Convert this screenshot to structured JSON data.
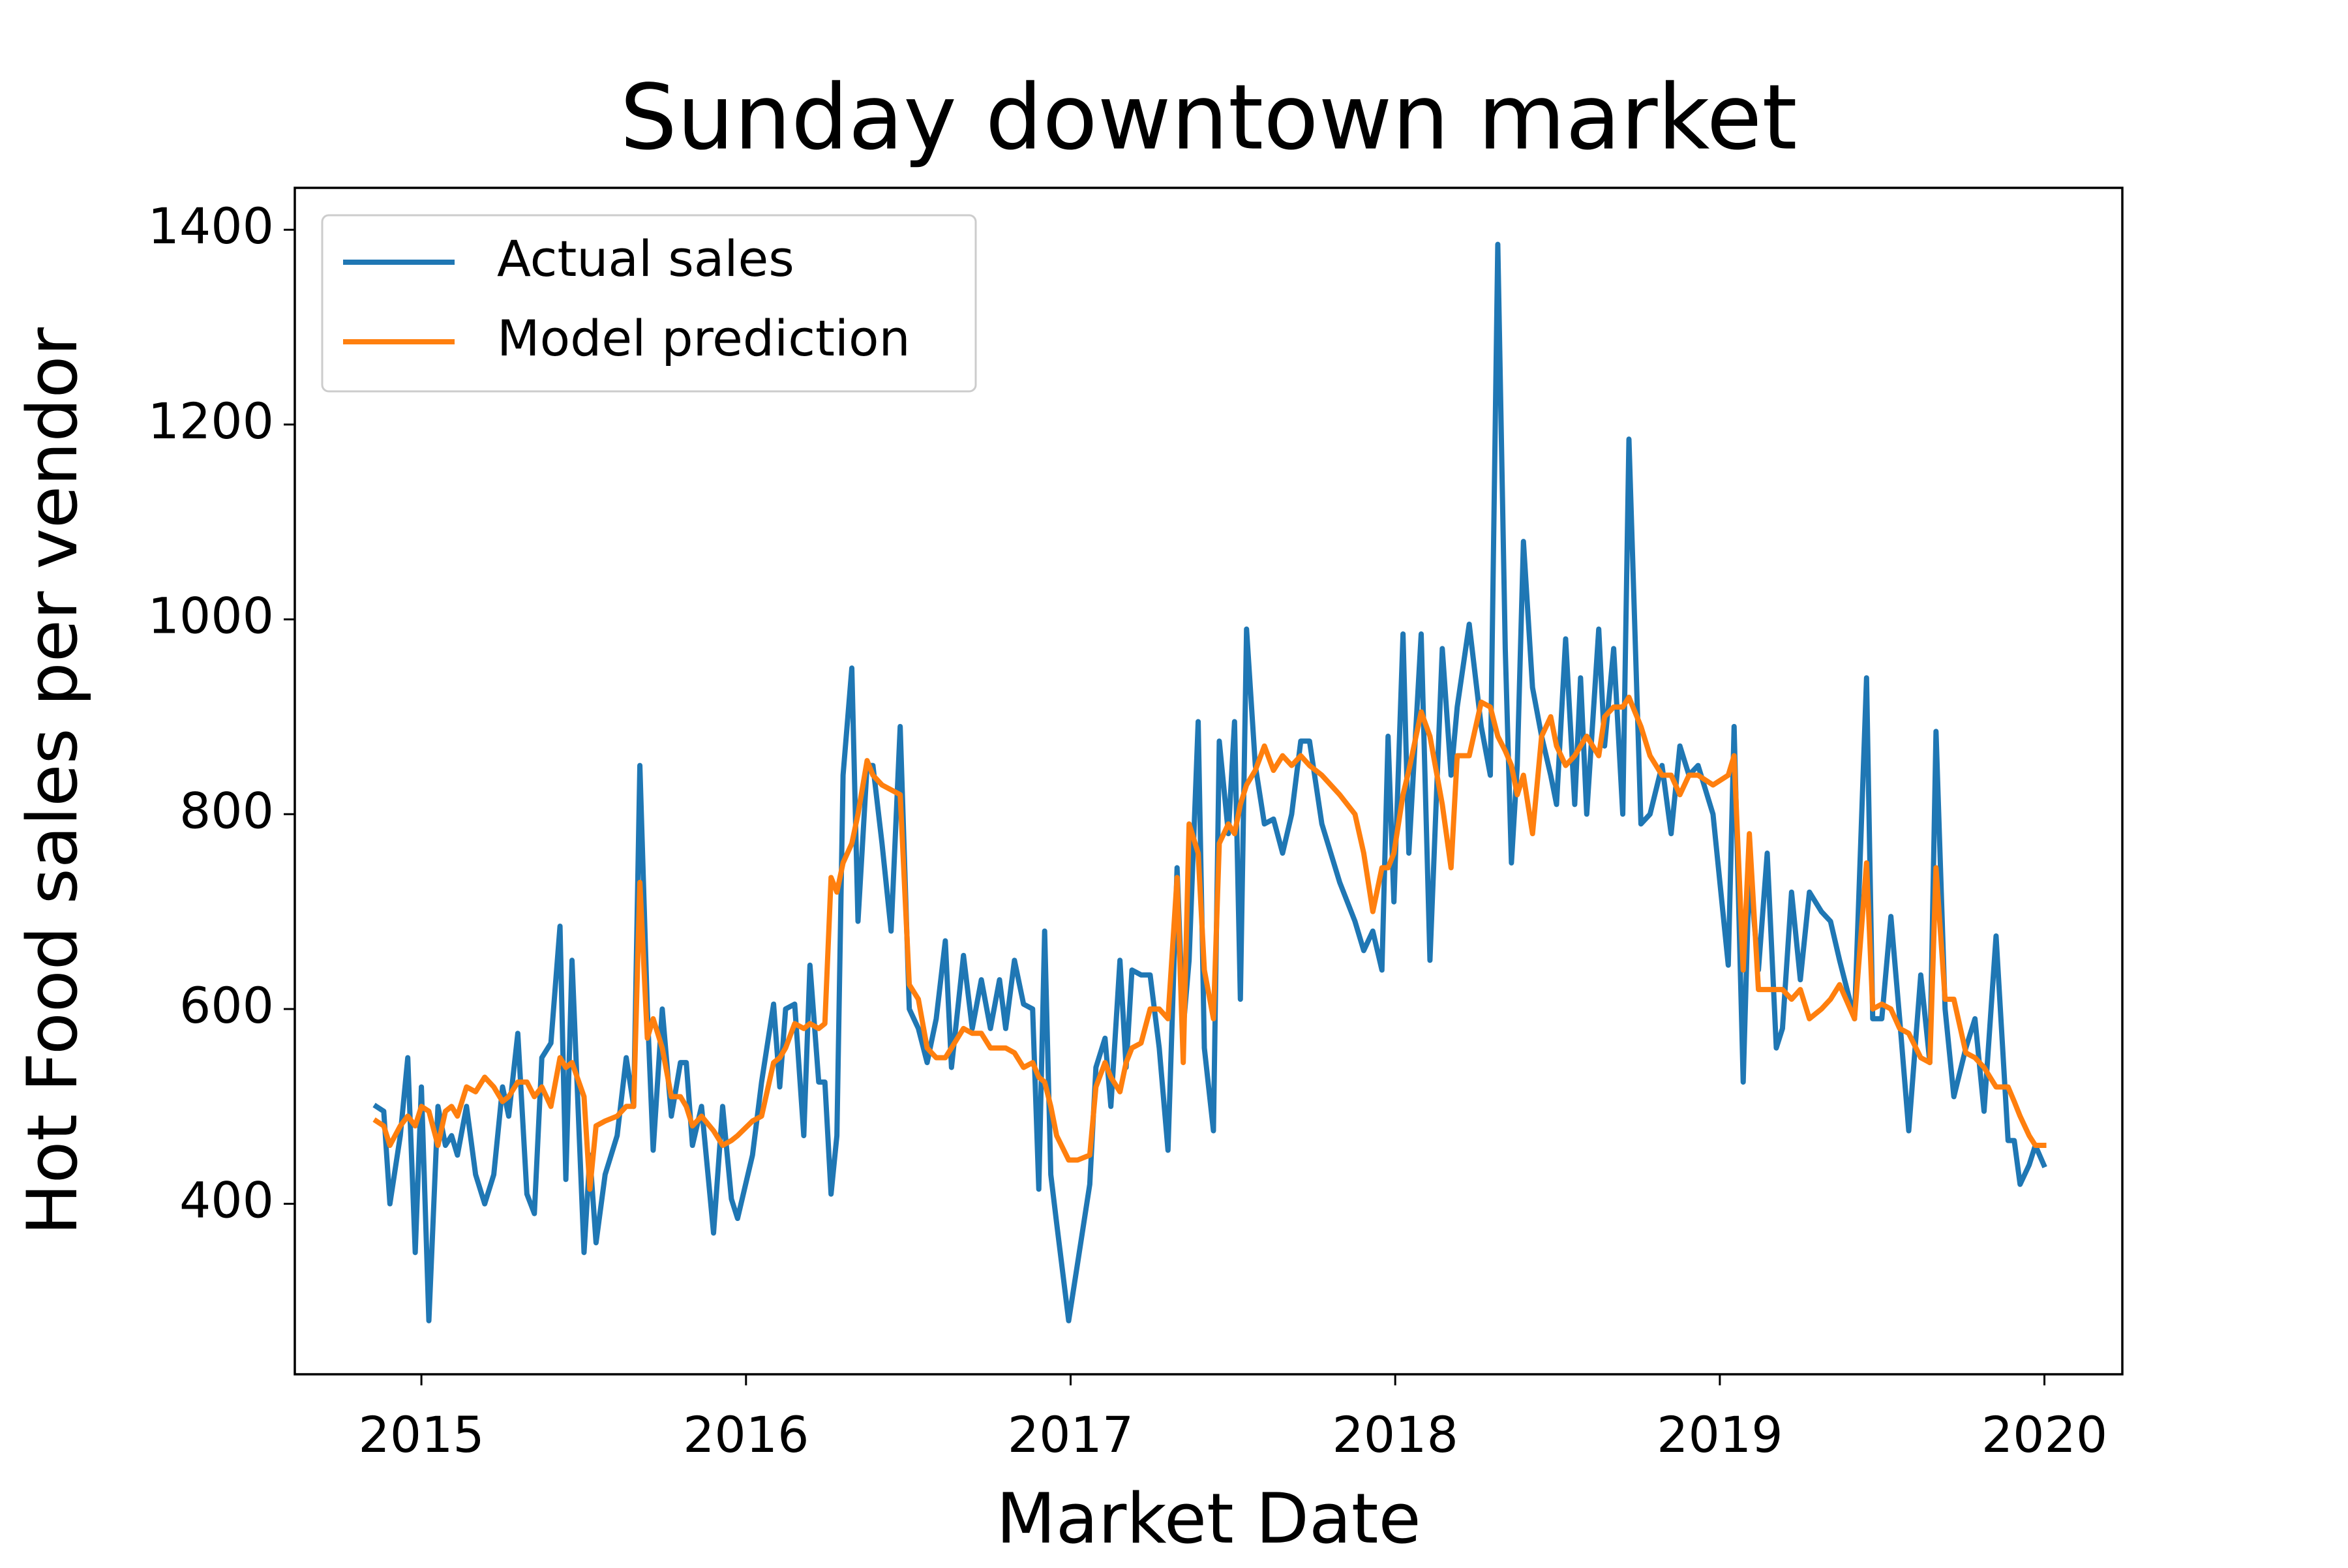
{
  "chart_data": {
    "type": "line",
    "title": "Sunday downtown market",
    "x_label": "Market Date",
    "y_label": "Hot Food sales per vendor",
    "legend": "upper left",
    "xlim": [
      2014.61,
      2020.24
    ],
    "xticks": [
      2015,
      2016,
      2017,
      2018,
      2019,
      2020
    ],
    "ylim": [
      225,
      1443
    ],
    "yticks": [
      400,
      600,
      800,
      1000,
      1200,
      1400
    ],
    "x": [
      2014.861,
      2014.884,
      2014.903,
      2014.935,
      2014.958,
      2014.981,
      2015.0,
      2015.023,
      2015.051,
      2015.074,
      2015.093,
      2015.111,
      2015.139,
      2015.167,
      2015.195,
      2015.223,
      2015.25,
      2015.269,
      2015.297,
      2015.325,
      2015.348,
      2015.371,
      2015.399,
      2015.427,
      2015.445,
      2015.464,
      2015.501,
      2015.519,
      2015.538,
      2015.566,
      2015.603,
      2015.631,
      2015.654,
      2015.673,
      2015.696,
      2015.714,
      2015.742,
      2015.77,
      2015.798,
      2015.816,
      2015.835,
      2015.863,
      2015.9,
      2015.928,
      2015.955,
      2015.974,
      2016.02,
      2016.048,
      2016.085,
      2016.104,
      2016.122,
      2016.15,
      2016.178,
      2016.197,
      2016.224,
      2016.243,
      2016.262,
      2016.28,
      2016.299,
      2016.326,
      2016.345,
      2016.373,
      2016.391,
      2016.419,
      2016.447,
      2016.475,
      2016.503,
      2016.531,
      2016.558,
      2016.586,
      2016.614,
      2016.633,
      2016.67,
      2016.697,
      2016.725,
      2016.753,
      2016.781,
      2016.8,
      2016.827,
      2016.855,
      2016.883,
      2016.902,
      2016.92,
      2016.939,
      2016.957,
      2016.994,
      2017.022,
      2017.059,
      2017.078,
      2017.106,
      2017.124,
      2017.152,
      2017.171,
      2017.189,
      2017.217,
      2017.245,
      2017.273,
      2017.3,
      2017.328,
      2017.347,
      2017.365,
      2017.393,
      2017.412,
      2017.44,
      2017.458,
      2017.486,
      2017.505,
      2017.523,
      2017.542,
      2017.569,
      2017.597,
      2017.625,
      2017.653,
      2017.681,
      2017.709,
      2017.736,
      2017.774,
      2017.829,
      2017.876,
      2017.903,
      2017.931,
      2017.959,
      2017.978,
      2017.996,
      2018.024,
      2018.042,
      2018.08,
      2018.107,
      2018.145,
      2018.172,
      2018.191,
      2018.228,
      2018.265,
      2018.293,
      2018.316,
      2018.339,
      2018.358,
      2018.376,
      2018.395,
      2018.423,
      2018.451,
      2018.479,
      2018.497,
      2018.525,
      2018.553,
      2018.571,
      2018.59,
      2018.627,
      2018.645,
      2018.673,
      2018.701,
      2018.72,
      2018.757,
      2018.785,
      2018.822,
      2018.85,
      2018.877,
      2018.905,
      2018.933,
      2018.979,
      2019.026,
      2019.044,
      2019.072,
      2019.091,
      2019.119,
      2019.146,
      2019.174,
      2019.193,
      2019.221,
      2019.248,
      2019.276,
      2019.313,
      2019.341,
      2019.369,
      2019.415,
      2019.452,
      2019.471,
      2019.499,
      2019.527,
      2019.554,
      2019.582,
      2019.619,
      2019.647,
      2019.666,
      2019.694,
      2019.721,
      2019.758,
      2019.786,
      2019.814,
      2019.851,
      2019.888,
      2019.907,
      2019.925,
      2019.953,
      2019.972,
      2019.998
    ],
    "series": [
      {
        "name": "Actual sales",
        "color": "#1f77b4",
        "values": [
          500,
          495,
          400,
          470,
          550,
          350,
          520,
          280,
          500,
          460,
          470,
          450,
          500,
          430,
          400,
          430,
          520,
          490,
          575,
          410,
          390,
          550,
          565,
          685,
          425,
          650,
          350,
          450,
          360,
          430,
          470,
          550,
          500,
          850,
          600,
          455,
          600,
          490,
          545,
          545,
          460,
          500,
          370,
          500,
          405,
          385,
          450,
          525,
          605,
          520,
          600,
          605,
          470,
          645,
          525,
          525,
          410,
          470,
          840,
          950,
          690,
          850,
          850,
          770,
          680,
          890,
          600,
          580,
          545,
          590,
          670,
          540,
          655,
          580,
          630,
          580,
          630,
          580,
          650,
          605,
          600,
          415,
          680,
          430,
          380,
          280,
          340,
          420,
          540,
          570,
          500,
          650,
          540,
          640,
          635,
          635,
          560,
          455,
          745,
          580,
          650,
          895,
          560,
          475,
          875,
          780,
          895,
          610,
          990,
          850,
          790,
          795,
          760,
          800,
          875,
          875,
          790,
          730,
          690,
          660,
          680,
          640,
          880,
          710,
          985,
          760,
          985,
          650,
          970,
          840,
          910,
          995,
          890,
          840,
          1385,
          970,
          750,
          850,
          1080,
          930,
          880,
          840,
          810,
          980,
          810,
          940,
          800,
          990,
          870,
          970,
          800,
          1185,
          790,
          800,
          850,
          780,
          870,
          840,
          850,
          800,
          645,
          890,
          525,
          745,
          640,
          760,
          560,
          580,
          720,
          630,
          720,
          700,
          690,
          650,
          590,
          940,
          590,
          590,
          695,
          590,
          475,
          635,
          545,
          885,
          600,
          510,
          560,
          590,
          495,
          675,
          465,
          465,
          420,
          440,
          460,
          440
        ]
      },
      {
        "name": "Model prediction",
        "color": "#ff7f0e",
        "values": [
          485,
          480,
          460,
          480,
          490,
          480,
          500,
          495,
          460,
          495,
          500,
          490,
          520,
          515,
          530,
          520,
          505,
          510,
          525,
          525,
          510,
          520,
          500,
          550,
          540,
          545,
          510,
          415,
          480,
          485,
          490,
          500,
          500,
          730,
          570,
          590,
          560,
          510,
          510,
          500,
          480,
          490,
          475,
          460,
          465,
          470,
          485,
          490,
          545,
          550,
          560,
          585,
          580,
          585,
          580,
          585,
          735,
          720,
          750,
          770,
          800,
          855,
          840,
          830,
          825,
          820,
          625,
          610,
          560,
          550,
          550,
          560,
          580,
          575,
          575,
          560,
          560,
          560,
          555,
          540,
          545,
          530,
          525,
          500,
          470,
          445,
          445,
          450,
          520,
          545,
          530,
          515,
          545,
          560,
          565,
          600,
          600,
          590,
          735,
          545,
          790,
          760,
          640,
          590,
          770,
          790,
          780,
          810,
          830,
          845,
          870,
          845,
          860,
          850,
          860,
          850,
          840,
          820,
          800,
          760,
          700,
          745,
          745,
          760,
          820,
          845,
          905,
          880,
          810,
          745,
          860,
          860,
          915,
          910,
          880,
          865,
          850,
          820,
          840,
          780,
          880,
          900,
          870,
          850,
          860,
          870,
          880,
          860,
          900,
          910,
          910,
          920,
          890,
          860,
          840,
          840,
          820,
          840,
          840,
          830,
          840,
          860,
          640,
          780,
          620,
          620,
          620,
          620,
          610,
          620,
          590,
          600,
          610,
          625,
          590,
          750,
          600,
          605,
          600,
          580,
          575,
          550,
          545,
          745,
          610,
          610,
          555,
          550,
          540,
          520,
          520,
          505,
          490,
          470,
          460,
          460
        ]
      }
    ]
  }
}
